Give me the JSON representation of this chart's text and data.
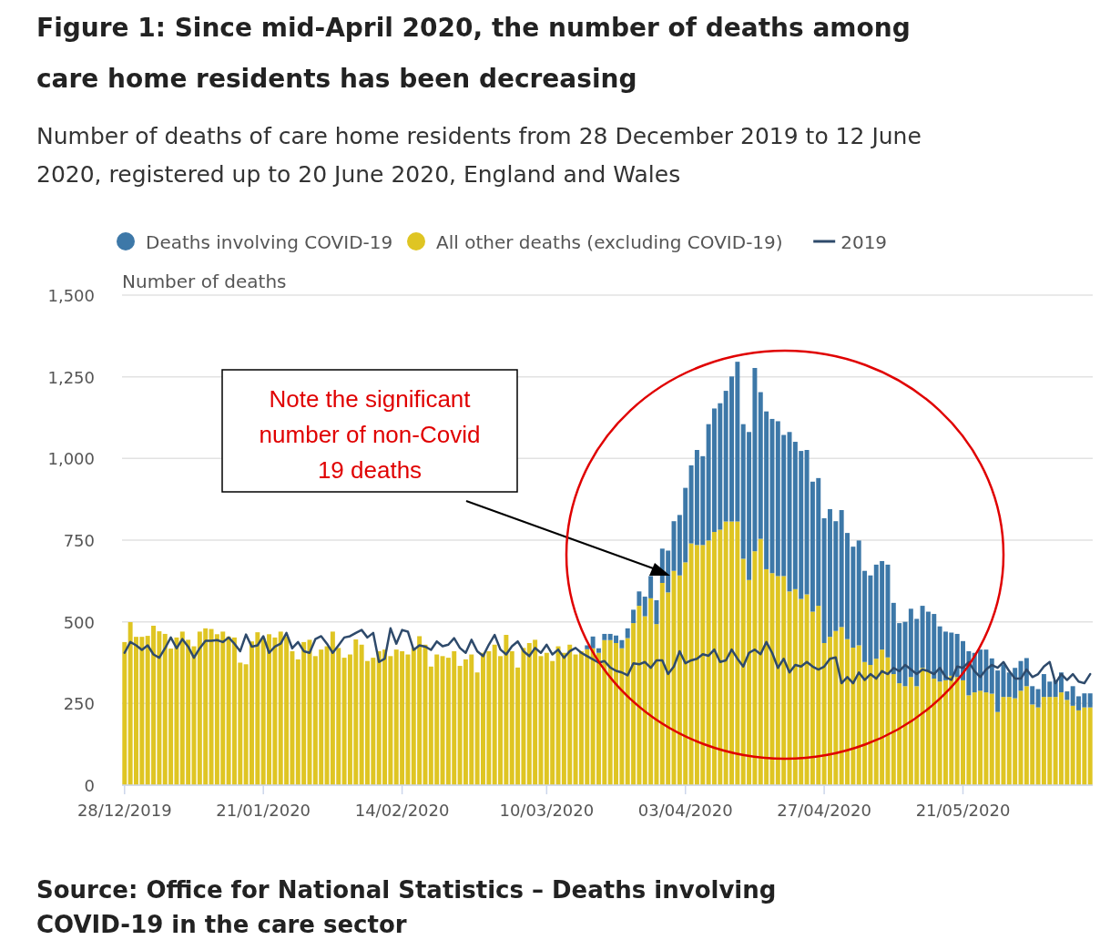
{
  "chart_data": {
    "type": "bar",
    "stacked": true,
    "title": "Figure 1: Since mid-April 2020, the number of deaths among care home residents has been decreasing",
    "subtitle": "Number of deaths of care home residents from 28 December 2019 to 12 June 2020, registered up to 20 June 2020, England and Wales",
    "ylabel": "Number of deaths",
    "categories": [
      "28/12/2019",
      null,
      null,
      null,
      null,
      null,
      null,
      null,
      null,
      null,
      null,
      null,
      null,
      null,
      null,
      null,
      null,
      null,
      null,
      null,
      null,
      null,
      null,
      null,
      "21/01/2020",
      null,
      null,
      null,
      null,
      null,
      null,
      null,
      null,
      null,
      null,
      null,
      null,
      null,
      null,
      null,
      null,
      null,
      null,
      null,
      null,
      null,
      null,
      null,
      "14/02/2020",
      null,
      null,
      null,
      null,
      null,
      null,
      null,
      null,
      null,
      null,
      null,
      null,
      null,
      null,
      null,
      null,
      null,
      null,
      null,
      null,
      null,
      null,
      null,
      null,
      "10/03/2020",
      null,
      null,
      null,
      null,
      null,
      null,
      null,
      null,
      null,
      null,
      null,
      null,
      null,
      null,
      null,
      null,
      null,
      null,
      null,
      null,
      null,
      null,
      null,
      "03/04/2020",
      null,
      null,
      null,
      null,
      null,
      null,
      null,
      null,
      null,
      null,
      null,
      null,
      null,
      null,
      null,
      null,
      null,
      null,
      null,
      null,
      null,
      null,
      null,
      "27/04/2020",
      null,
      null,
      null,
      null,
      null,
      null,
      null,
      null,
      null,
      null,
      null,
      null,
      null,
      null,
      null,
      null,
      null,
      null,
      null,
      null,
      null,
      null,
      null,
      "21/05/2020",
      null,
      null,
      null,
      null,
      null,
      null,
      null,
      null,
      null,
      null,
      null,
      null,
      null,
      null,
      null,
      null,
      null,
      null,
      null,
      null,
      null,
      null
    ],
    "series": [
      {
        "name": "All other deaths (excluding COVID-19)",
        "color": "#dfc523",
        "values": [
          438,
          499,
          454,
          454,
          457,
          488,
          471,
          463,
          418,
          452,
          470,
          445,
          425,
          470,
          480,
          478,
          462,
          470,
          455,
          452,
          375,
          370,
          440,
          468,
          450,
          462,
          452,
          470,
          455,
          410,
          385,
          438,
          445,
          395,
          415,
          425,
          470,
          420,
          390,
          400,
          446,
          430,
          380,
          390,
          410,
          415,
          395,
          415,
          410,
          400,
          420,
          456,
          430,
          363,
          400,
          395,
          390,
          410,
          365,
          385,
          400,
          345,
          405,
          410,
          430,
          395,
          460,
          410,
          360,
          420,
          435,
          445,
          395,
          405,
          380,
          425,
          405,
          430,
          400,
          410,
          416,
          419,
          405,
          444,
          444,
          435,
          419,
          450,
          496,
          549,
          517,
          572,
          493,
          619,
          590,
          656,
          642,
          682,
          740,
          735,
          735,
          749,
          775,
          782,
          807,
          807,
          807,
          693,
          628,
          716,
          754,
          661,
          649,
          640,
          640,
          593,
          600,
          570,
          584,
          531,
          549,
          435,
          454,
          472,
          484,
          447,
          421,
          428,
          377,
          368,
          387,
          415,
          391,
          340,
          312,
          303,
          331,
          303,
          359,
          349,
          326,
          317,
          321,
          335,
          331,
          321,
          275,
          284,
          289,
          284,
          280,
          224,
          270,
          270,
          266,
          289,
          303,
          247,
          238,
          270,
          270,
          270,
          284,
          261,
          243,
          229,
          238,
          238
        ]
      },
      {
        "name": "Deaths involving COVID-19",
        "color": "#3d78a8",
        "values": [
          0,
          0,
          0,
          0,
          0,
          0,
          0,
          0,
          0,
          0,
          0,
          0,
          0,
          0,
          0,
          0,
          0,
          0,
          0,
          0,
          0,
          0,
          0,
          0,
          0,
          0,
          0,
          0,
          0,
          0,
          0,
          0,
          0,
          0,
          0,
          0,
          0,
          0,
          0,
          0,
          0,
          0,
          0,
          0,
          0,
          0,
          0,
          0,
          0,
          0,
          0,
          0,
          0,
          0,
          0,
          0,
          0,
          0,
          0,
          0,
          0,
          0,
          0,
          0,
          0,
          0,
          0,
          0,
          0,
          0,
          0,
          0,
          0,
          0,
          0,
          0,
          0,
          0,
          0,
          0,
          12,
          36,
          14,
          19,
          19,
          23,
          25,
          30,
          41,
          44,
          60,
          68,
          73,
          105,
          128,
          152,
          185,
          228,
          239,
          291,
          272,
          356,
          378,
          387,
          400,
          444,
          489,
          412,
          453,
          561,
          449,
          483,
          472,
          474,
          432,
          488,
          451,
          453,
          442,
          398,
          391,
          382,
          391,
          336,
          358,
          325,
          309,
          321,
          279,
          274,
          288,
          271,
          284,
          218,
          184,
          197,
          209,
          206,
          190,
          182,
          198,
          169,
          149,
          132,
          132,
          120,
          135,
          121,
          126,
          131,
          108,
          127,
          100,
          75,
          93,
          91,
          86,
          56,
          56,
          70,
          47,
          51,
          61,
          26,
          60,
          43,
          43,
          43
        ]
      },
      {
        "name": "2019",
        "type": "line",
        "color": "#2e4a6b",
        "values": [
          405,
          438,
          428,
          414,
          428,
          400,
          390,
          419,
          452,
          419,
          447,
          424,
          390,
          419,
          442,
          442,
          444,
          438,
          452,
          433,
          410,
          461,
          424,
          428,
          456,
          405,
          424,
          433,
          466,
          419,
          438,
          410,
          405,
          447,
          456,
          433,
          405,
          428,
          452,
          456,
          466,
          475,
          452,
          466,
          377,
          387,
          480,
          433,
          475,
          470,
          414,
          428,
          424,
          414,
          440,
          425,
          430,
          450,
          420,
          405,
          445,
          410,
          395,
          430,
          460,
          415,
          400,
          425,
          440,
          410,
          395,
          420,
          405,
          430,
          400,
          415,
          390,
          410,
          420,
          405,
          395,
          385,
          375,
          380,
          360,
          350,
          345,
          336,
          373,
          370,
          377,
          359,
          382,
          382,
          340,
          363,
          410,
          373,
          382,
          387,
          401,
          396,
          415,
          377,
          382,
          415,
          387,
          363,
          405,
          415,
          401,
          438,
          405,
          359,
          387,
          345,
          368,
          363,
          377,
          363,
          354,
          363,
          387,
          391,
          312,
          331,
          312,
          345,
          322,
          340,
          326,
          349,
          340,
          359,
          349,
          368,
          354,
          340,
          354,
          349,
          340,
          359,
          331,
          322,
          363,
          359,
          377,
          349,
          331,
          354,
          368,
          359,
          377,
          349,
          326,
          326,
          354,
          331,
          340,
          363,
          377,
          312,
          340,
          322,
          340,
          317,
          312,
          340
        ]
      }
    ],
    "ylim": [
      0,
      1500
    ],
    "yticks": [
      0,
      250,
      500,
      750,
      {
        "value": 1000,
        "label": "1,000"
      },
      {
        "value": 1250,
        "label": "1,250"
      },
      {
        "value": 1500,
        "label": "1,500"
      }
    ],
    "grid": "y",
    "legend": "top",
    "annotations": [
      "Note the significant number of non-Covid 19 deaths",
      "Source: Office for National Statistics – Deaths involving COVID-19 in the care sector"
    ]
  }
}
